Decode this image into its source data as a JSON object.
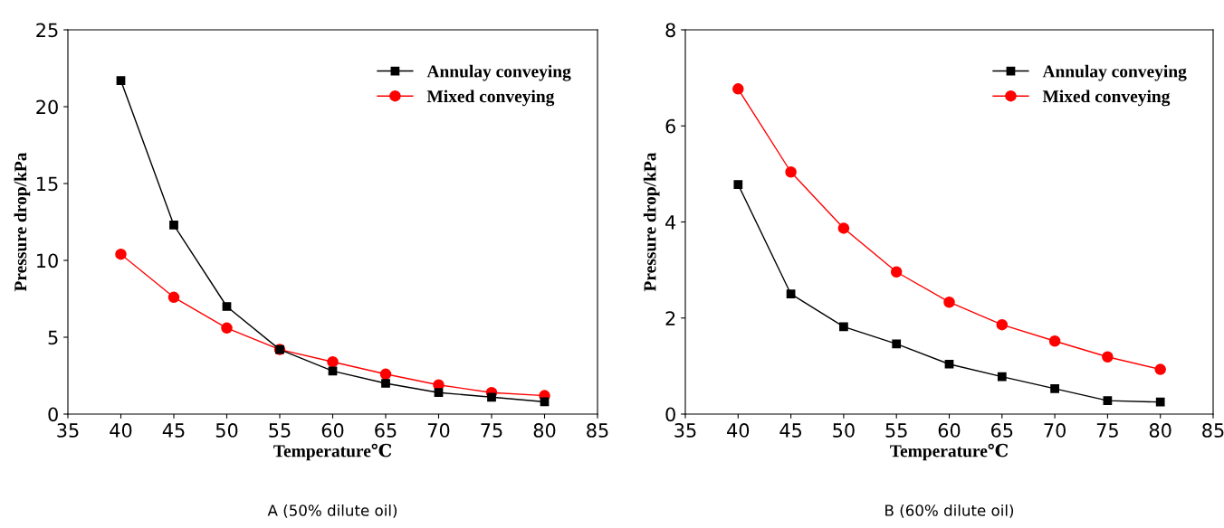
{
  "chart_data": [
    {
      "type": "line",
      "xlabel": "Temperature℃",
      "ylabel": "Pressure drop/kPa",
      "x": [
        40,
        45,
        50,
        55,
        60,
        65,
        70,
        75,
        80
      ],
      "series": [
        {
          "name": "Annulay conveying",
          "color": "#000000",
          "marker": "square",
          "values": [
            21.7,
            12.3,
            7.0,
            4.2,
            2.8,
            2.0,
            1.4,
            1.1,
            0.8
          ]
        },
        {
          "name": "Mixed conveying",
          "color": "#ff0000",
          "marker": "circle",
          "values": [
            10.4,
            7.6,
            5.6,
            4.2,
            3.4,
            2.6,
            1.9,
            1.4,
            1.2
          ]
        }
      ],
      "xlim": [
        35,
        85
      ],
      "xticks": [
        35,
        40,
        45,
        50,
        55,
        60,
        65,
        70,
        75,
        80,
        85
      ],
      "ylim": [
        0,
        25
      ],
      "yticks": [
        0,
        5,
        10,
        15,
        20,
        25
      ],
      "legend": "top right",
      "grid": false,
      "annotations": [
        "A (50% dilute oil)"
      ]
    },
    {
      "type": "line",
      "xlabel": "Temperature℃",
      "ylabel": "Pressure drop/kPa",
      "x": [
        40,
        45,
        50,
        55,
        60,
        65,
        70,
        75,
        80
      ],
      "series": [
        {
          "name": "Annulay conveying",
          "color": "#000000",
          "marker": "square",
          "values": [
            4.78,
            2.5,
            1.82,
            1.46,
            1.04,
            0.78,
            0.53,
            0.28,
            0.25
          ]
        },
        {
          "name": "Mixed conveying",
          "color": "#ff0000",
          "marker": "circle",
          "values": [
            6.77,
            5.04,
            3.87,
            2.96,
            2.33,
            1.86,
            1.52,
            1.19,
            0.93
          ]
        }
      ],
      "xlim": [
        35,
        85
      ],
      "xticks": [
        35,
        40,
        45,
        50,
        55,
        60,
        65,
        70,
        75,
        80,
        85
      ],
      "ylim": [
        0,
        8
      ],
      "yticks": [
        0,
        2,
        4,
        6,
        8
      ],
      "legend": "top right",
      "grid": false,
      "annotations": [
        "B (60% dilute oil)"
      ]
    }
  ]
}
